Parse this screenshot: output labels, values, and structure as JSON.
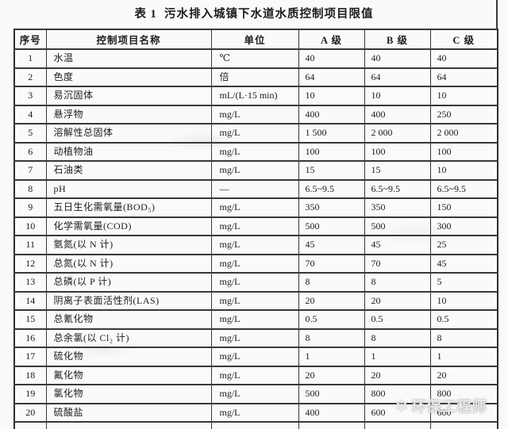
{
  "title": "表 1  污水排入城镇下水道水质控制项目限值",
  "table": {
    "headers": [
      "序号",
      "控制项目名称",
      "单位",
      "A 级",
      "B 级",
      "C 级"
    ],
    "rows": [
      [
        "1",
        "水温",
        "℃",
        "40",
        "40",
        "40"
      ],
      [
        "2",
        "色度",
        "倍",
        "64",
        "64",
        "64"
      ],
      [
        "3",
        "易沉固体",
        "mL/(L·15 min)",
        "10",
        "10",
        "10"
      ],
      [
        "4",
        "悬浮物",
        "mg/L",
        "400",
        "400",
        "250"
      ],
      [
        "5",
        "溶解性总固体",
        "mg/L",
        "1 500",
        "2 000",
        "2 000"
      ],
      [
        "6",
        "动植物油",
        "mg/L",
        "100",
        "100",
        "100"
      ],
      [
        "7",
        "石油类",
        "mg/L",
        "15",
        "15",
        "10"
      ],
      [
        "8",
        "pH",
        "—",
        "6.5~9.5",
        "6.5~9.5",
        "6.5~9.5"
      ],
      [
        "9",
        "五日生化需氧量(BOD₅)",
        "mg/L",
        "350",
        "350",
        "150"
      ],
      [
        "10",
        "化学需氧量(COD)",
        "mg/L",
        "500",
        "500",
        "300"
      ],
      [
        "11",
        "氨氮(以 N 计)",
        "mg/L",
        "45",
        "45",
        "25"
      ],
      [
        "12",
        "总氮(以 N 计)",
        "mg/L",
        "70",
        "70",
        "45"
      ],
      [
        "13",
        "总磷(以 P 计)",
        "mg/L",
        "8",
        "8",
        "5"
      ],
      [
        "14",
        "阴离子表面活性剂(LAS)",
        "mg/L",
        "20",
        "20",
        "10"
      ],
      [
        "15",
        "总氰化物",
        "mg/L",
        "0.5",
        "0.5",
        "0.5"
      ],
      [
        "16",
        "总余氯(以 Cl₂ 计)",
        "mg/L",
        "8",
        "8",
        "8"
      ],
      [
        "17",
        "硫化物",
        "mg/L",
        "1",
        "1",
        "1"
      ],
      [
        "18",
        "氟化物",
        "mg/L",
        "20",
        "20",
        "20"
      ],
      [
        "19",
        "氯化物",
        "mg/L",
        "500",
        "800",
        "800"
      ],
      [
        "20",
        "硫酸盐",
        "mg/L",
        "400",
        "600",
        "600"
      ]
    ]
  },
  "watermark": {
    "icon": "❄",
    "text": "环保工程师"
  },
  "colors": {
    "background": "#fbfafa",
    "border": "#383838",
    "text": "#1c1c1c",
    "watermark": "#ffffff"
  }
}
